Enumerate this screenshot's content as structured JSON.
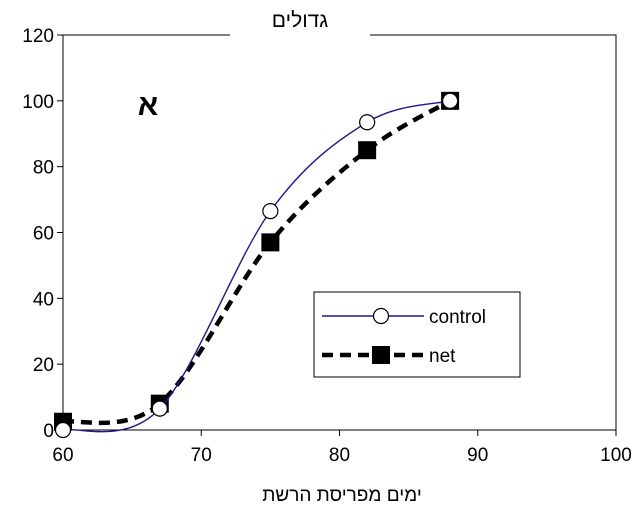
{
  "chart_data": {
    "type": "line",
    "title": "גדולים",
    "panel_label": "א",
    "xlabel": "ימים מפריסת הרשת",
    "ylabel": "",
    "xlim": [
      60,
      100
    ],
    "ylim": [
      0,
      120
    ],
    "xticks": [
      "60",
      "70",
      "80",
      "90",
      "100"
    ],
    "yticks": [
      "0",
      "20",
      "40",
      "60",
      "80",
      "100",
      "120"
    ],
    "grid": false,
    "legend_position": "lower-right",
    "series": [
      {
        "name": "control",
        "color": "#1a1a8c",
        "line_style": "solid",
        "marker": "open-circle",
        "points": [
          [
            60,
            0
          ],
          [
            67,
            6.5
          ],
          [
            75,
            66.5
          ],
          [
            82,
            93.5
          ],
          [
            88,
            100
          ]
        ]
      },
      {
        "name": "net",
        "color": "#000000",
        "line_style": "dashed",
        "marker": "filled-square",
        "points": [
          [
            60,
            2.5
          ],
          [
            67,
            8
          ],
          [
            75,
            57
          ],
          [
            82,
            85
          ],
          [
            88,
            100
          ]
        ]
      }
    ]
  }
}
